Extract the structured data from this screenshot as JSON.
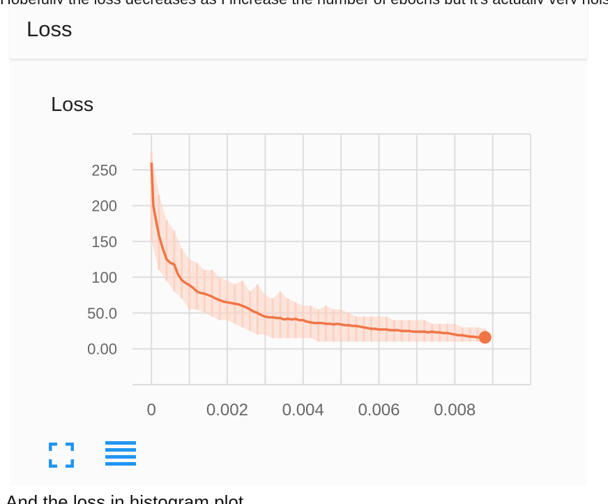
{
  "top_text": "Hopefully the loss decreases as I increase the number of epochs but it's actually very noisy",
  "card": {
    "title": "Loss"
  },
  "chart_data": {
    "type": "line",
    "title": "Loss",
    "xlabel": "",
    "ylabel": "",
    "xlim": [
      -0.0005,
      0.01
    ],
    "ylim": [
      -50,
      300
    ],
    "x_ticks": [
      "0",
      "0.002",
      "0.004",
      "0.006",
      "0.008"
    ],
    "x_tick_values": [
      0,
      0.002,
      0.004,
      0.006,
      0.008
    ],
    "y_ticks": [
      "0.00",
      "50.0",
      "100",
      "150",
      "200",
      "250"
    ],
    "y_tick_values": [
      0,
      50,
      100,
      150,
      200,
      250
    ],
    "grid": true,
    "colors": {
      "smoothed": "#f07545",
      "raw": "#fcd2c2",
      "grid": "#dddddd"
    },
    "series": [
      {
        "values_smoothed": [
          [
            0,
            260
          ],
          [
            5e-05,
            200
          ],
          [
            0.0001,
            185
          ],
          [
            0.0002,
            158
          ],
          [
            0.0003,
            140
          ],
          [
            0.0004,
            125
          ],
          [
            0.0005,
            120
          ],
          [
            0.0006,
            118
          ],
          [
            0.0007,
            104
          ],
          [
            0.0008,
            96
          ],
          [
            0.0009,
            92
          ],
          [
            0.001,
            89
          ],
          [
            0.0011,
            85
          ],
          [
            0.0012,
            80
          ],
          [
            0.0013,
            78
          ],
          [
            0.0014,
            77
          ],
          [
            0.0015,
            75
          ],
          [
            0.0016,
            73
          ],
          [
            0.0017,
            70
          ],
          [
            0.0018,
            68
          ],
          [
            0.0019,
            66
          ],
          [
            0.002,
            65
          ],
          [
            0.0021,
            64
          ],
          [
            0.0022,
            63
          ],
          [
            0.0023,
            62
          ],
          [
            0.0024,
            60
          ],
          [
            0.0025,
            58
          ],
          [
            0.0026,
            55
          ],
          [
            0.0027,
            52
          ],
          [
            0.0028,
            50
          ],
          [
            0.0029,
            47
          ],
          [
            0.003,
            45
          ],
          [
            0.0031,
            44
          ],
          [
            0.0032,
            44
          ],
          [
            0.0033,
            43
          ],
          [
            0.0034,
            43
          ],
          [
            0.0035,
            41
          ],
          [
            0.0036,
            42
          ],
          [
            0.0037,
            41
          ],
          [
            0.0038,
            42
          ],
          [
            0.0039,
            40
          ],
          [
            0.004,
            40
          ],
          [
            0.0041,
            38
          ],
          [
            0.0042,
            37
          ],
          [
            0.0043,
            36
          ],
          [
            0.0044,
            36
          ],
          [
            0.0045,
            36
          ],
          [
            0.0046,
            35
          ],
          [
            0.0047,
            35
          ],
          [
            0.0048,
            34
          ],
          [
            0.0049,
            35
          ],
          [
            0.005,
            34
          ],
          [
            0.0051,
            33
          ],
          [
            0.0052,
            33
          ],
          [
            0.0053,
            32
          ],
          [
            0.0054,
            32
          ],
          [
            0.0055,
            31
          ],
          [
            0.0056,
            30
          ],
          [
            0.0057,
            29
          ],
          [
            0.0058,
            28
          ],
          [
            0.0059,
            28
          ],
          [
            0.006,
            27
          ],
          [
            0.0061,
            27
          ],
          [
            0.0062,
            27
          ],
          [
            0.0063,
            26
          ],
          [
            0.0064,
            26
          ],
          [
            0.0065,
            26
          ],
          [
            0.0066,
            25
          ],
          [
            0.0067,
            25
          ],
          [
            0.0068,
            25
          ],
          [
            0.0069,
            24
          ],
          [
            0.007,
            24
          ],
          [
            0.0071,
            24
          ],
          [
            0.0072,
            24
          ],
          [
            0.0073,
            23
          ],
          [
            0.0074,
            24
          ],
          [
            0.0075,
            23
          ],
          [
            0.0076,
            23
          ],
          [
            0.0077,
            22
          ],
          [
            0.0078,
            22
          ],
          [
            0.0079,
            21
          ],
          [
            0.008,
            20
          ],
          [
            0.0081,
            19
          ],
          [
            0.0082,
            19
          ],
          [
            0.0083,
            18
          ],
          [
            0.0084,
            17
          ],
          [
            0.0085,
            17
          ],
          [
            0.0086,
            16
          ],
          [
            0.0087,
            16
          ],
          [
            0.0088,
            16
          ]
        ],
        "values_raw_band": [
          [
            0,
            275,
            150
          ],
          [
            0.0002,
            215,
            110
          ],
          [
            0.0004,
            180,
            95
          ],
          [
            0.0006,
            165,
            80
          ],
          [
            0.0008,
            140,
            70
          ],
          [
            0.001,
            125,
            55
          ],
          [
            0.0012,
            120,
            55
          ],
          [
            0.0014,
            110,
            50
          ],
          [
            0.0016,
            110,
            45
          ],
          [
            0.0018,
            100,
            40
          ],
          [
            0.002,
            95,
            40
          ],
          [
            0.0022,
            90,
            35
          ],
          [
            0.0024,
            95,
            30
          ],
          [
            0.0026,
            80,
            25
          ],
          [
            0.0028,
            90,
            20
          ],
          [
            0.003,
            75,
            20
          ],
          [
            0.0032,
            70,
            15
          ],
          [
            0.0034,
            80,
            15
          ],
          [
            0.0036,
            70,
            15
          ],
          [
            0.0038,
            65,
            15
          ],
          [
            0.004,
            60,
            15
          ],
          [
            0.0042,
            60,
            15
          ],
          [
            0.0044,
            55,
            10
          ],
          [
            0.0046,
            60,
            10
          ],
          [
            0.0048,
            55,
            10
          ],
          [
            0.005,
            55,
            10
          ],
          [
            0.0052,
            50,
            10
          ],
          [
            0.0054,
            45,
            10
          ],
          [
            0.0056,
            45,
            10
          ],
          [
            0.0058,
            45,
            10
          ],
          [
            0.006,
            45,
            10
          ],
          [
            0.0062,
            45,
            10
          ],
          [
            0.0064,
            40,
            10
          ],
          [
            0.0066,
            40,
            10
          ],
          [
            0.0068,
            40,
            10
          ],
          [
            0.007,
            40,
            10
          ],
          [
            0.0072,
            40,
            10
          ],
          [
            0.0074,
            35,
            10
          ],
          [
            0.0076,
            35,
            10
          ],
          [
            0.0078,
            35,
            10
          ],
          [
            0.008,
            35,
            10
          ],
          [
            0.0082,
            30,
            10
          ],
          [
            0.0084,
            30,
            10
          ],
          [
            0.0086,
            30,
            10
          ],
          [
            0.0088,
            28,
            10
          ]
        ],
        "end_point": [
          0.0088,
          16
        ]
      }
    ]
  },
  "toolbar": {
    "expand_icon": "fullscreen-icon",
    "data_icon": "list-icon"
  },
  "bottom_text": "And the loss in histogram plot"
}
